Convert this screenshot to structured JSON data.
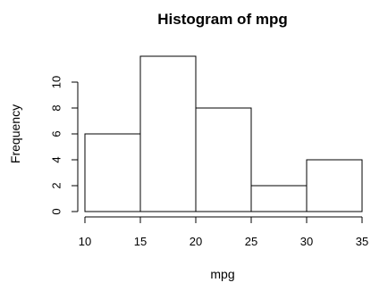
{
  "chart_data": {
    "type": "bar",
    "title": "Histogram of mpg",
    "xlabel": "mpg",
    "ylabel": "Frequency",
    "bins": [
      {
        "start": 10,
        "end": 15,
        "count": 6
      },
      {
        "start": 15,
        "end": 20,
        "count": 12
      },
      {
        "start": 20,
        "end": 25,
        "count": 8
      },
      {
        "start": 25,
        "end": 30,
        "count": 2
      },
      {
        "start": 30,
        "end": 35,
        "count": 4
      }
    ],
    "xlim": [
      10,
      35
    ],
    "ylim": [
      0,
      12
    ],
    "x_ticks": [
      "10",
      "15",
      "20",
      "25",
      "30",
      "35"
    ],
    "y_ticks": [
      "0",
      "2",
      "4",
      "6",
      "8",
      "10"
    ],
    "bar_fill": "#ffffff",
    "bar_stroke": "#000000",
    "grid": false,
    "legend": "none"
  }
}
